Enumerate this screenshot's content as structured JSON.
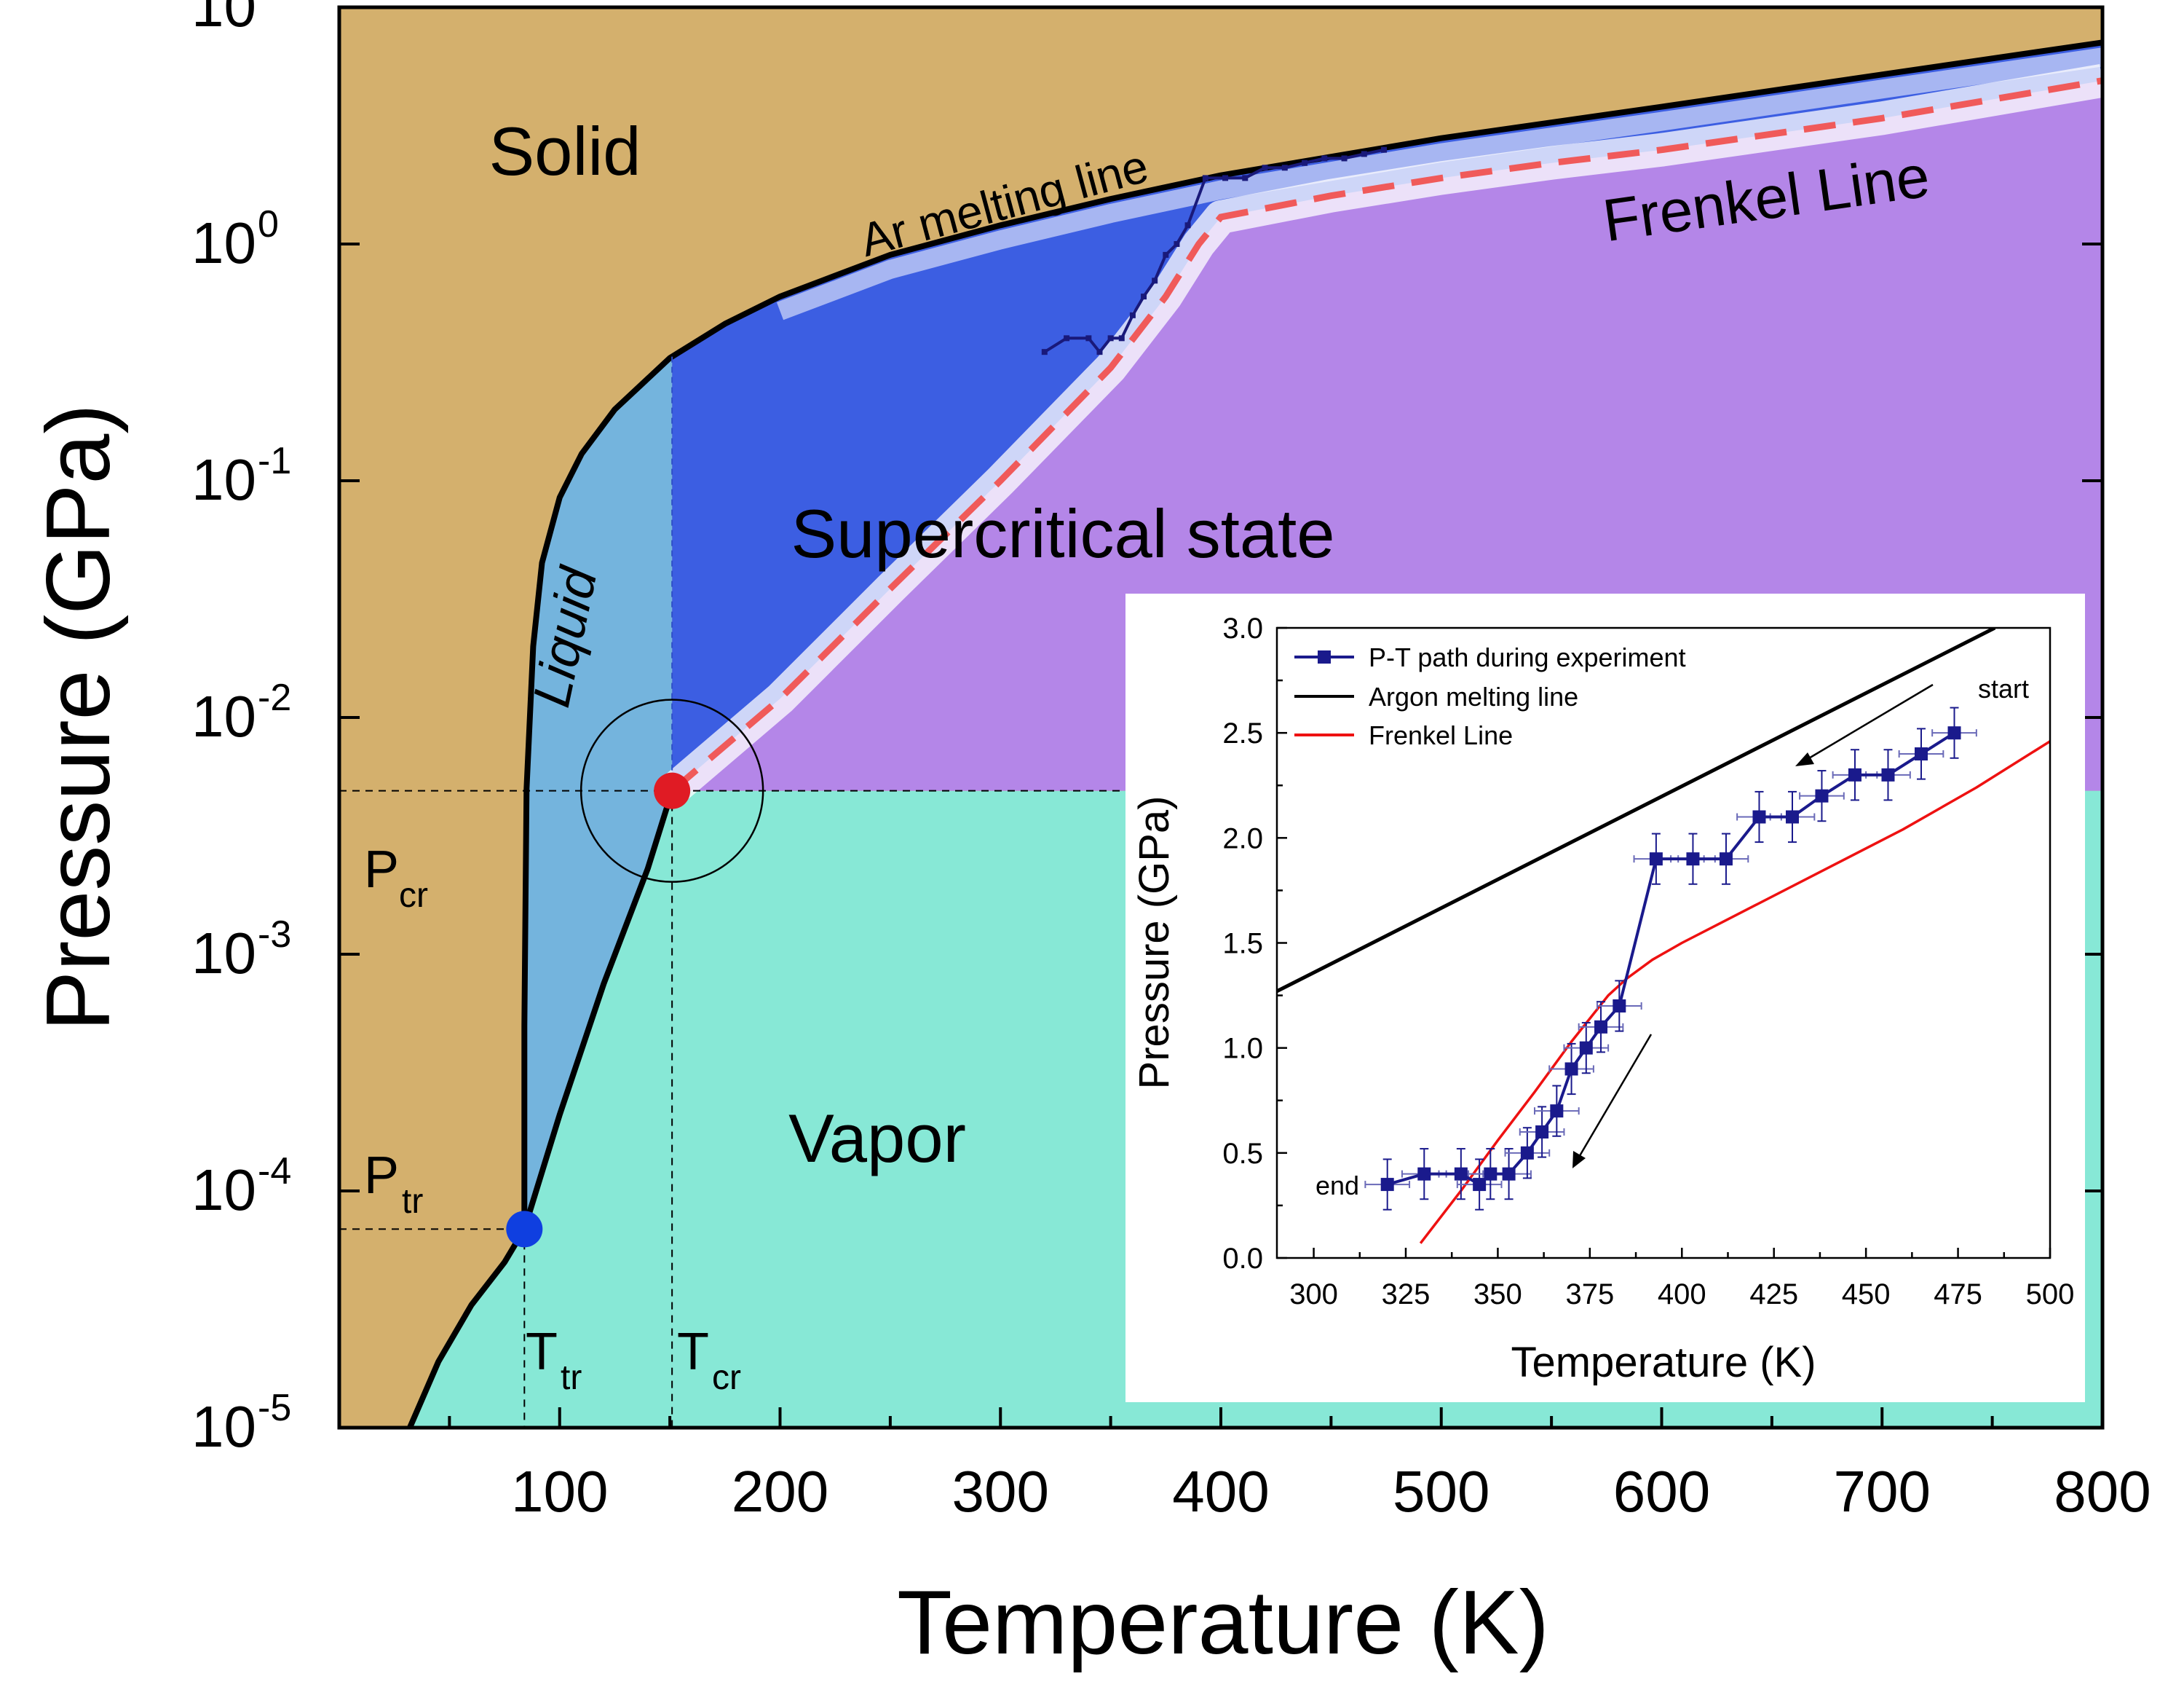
{
  "chart_data": [
    {
      "type": "phase-diagram",
      "title": "",
      "xlabel": "Temperature (K)",
      "ylabel": "Pressure (GPa)",
      "xlim": [
        0,
        800
      ],
      "ylim_log10": [
        -5,
        1
      ],
      "y_scale": "log",
      "x_ticks": [
        "100",
        "200",
        "300",
        "400",
        "500",
        "600",
        "700",
        "800"
      ],
      "x_tick_values": [
        100,
        200,
        300,
        400,
        500,
        600,
        700,
        800
      ],
      "y_ticks": [
        {
          "base": "10",
          "exp": "-5",
          "log": -5
        },
        {
          "base": "10",
          "exp": "-4",
          "log": -4
        },
        {
          "base": "10",
          "exp": "-3",
          "log": -3
        },
        {
          "base": "10",
          "exp": "-2",
          "log": -2
        },
        {
          "base": "10",
          "exp": "-1",
          "log": -1
        },
        {
          "base": "10",
          "exp": "0",
          "log": 0
        },
        {
          "base": "10",
          "exp": "1",
          "log": 1
        }
      ],
      "regions": {
        "solid": "Solid",
        "liquid": "Liquid",
        "supercritical": "Supercritical state",
        "vapor": "Vapor"
      },
      "line_labels": {
        "melting": "Ar melting line",
        "frenkel": "Frenkel Line"
      },
      "points": {
        "triple": {
          "T": 84,
          "P": 6.9e-05,
          "label_P": "P",
          "sub_P": "tr",
          "label_T": "T",
          "sub_T": "tr"
        },
        "critical": {
          "T": 151,
          "P": 0.0049,
          "label_P": "P",
          "sub_P": "cr",
          "label_T": "T",
          "sub_T": "cr"
        }
      },
      "melting_line": {
        "x": [
          32,
          45,
          60,
          75,
          84,
          84,
          85,
          88,
          92,
          100,
          110,
          125,
          150,
          175,
          200,
          250,
          300,
          350,
          400,
          500,
          600,
          700,
          800
        ],
        "y": [
          1e-05,
          1.9e-05,
          3.3e-05,
          5e-05,
          6.9e-05,
          0.0005,
          0.005,
          0.02,
          0.045,
          0.085,
          0.13,
          0.2,
          0.33,
          0.46,
          0.6,
          0.9,
          1.2,
          1.55,
          1.95,
          2.8,
          3.8,
          5.2,
          7.1
        ]
      },
      "vaporization_line": {
        "x": [
          84,
          100,
          120,
          140,
          151
        ],
        "y": [
          6.9e-05,
          0.00021,
          0.00075,
          0.0023,
          0.0049
        ]
      },
      "frenkel_line": {
        "x": [
          151,
          200,
          250,
          300,
          350,
          375,
          390,
          400,
          450,
          500,
          550,
          600,
          700,
          800
        ],
        "y": [
          0.0049,
          0.012,
          0.035,
          0.1,
          0.3,
          0.6,
          1.0,
          1.3,
          1.6,
          1.9,
          2.2,
          2.5,
          3.4,
          4.9
        ]
      },
      "pt_path": {
        "x": [
          320,
          330,
          340,
          345,
          350,
          355,
          360,
          365,
          370,
          375,
          380,
          385,
          393,
          402,
          411,
          420,
          429,
          438,
          447,
          456,
          465,
          474
        ],
        "y": [
          0.35,
          0.4,
          0.4,
          0.35,
          0.4,
          0.4,
          0.5,
          0.6,
          0.7,
          0.9,
          1.0,
          1.2,
          1.9,
          1.9,
          1.9,
          2.1,
          2.1,
          2.2,
          2.3,
          2.3,
          2.4,
          2.5
        ]
      },
      "colors": {
        "solid": "#d4b06d",
        "liquid": "#74b4dd",
        "supercritical": "#3c5ee2",
        "supercritical_purple": "#b486e8",
        "vapor": "#87e8d6",
        "melting_line": "#000000",
        "frenkel_line": "#f05a5a",
        "path": "#19197a",
        "triple_point": "#0f3fe0",
        "critical_point": "#e01b24"
      }
    },
    {
      "type": "line",
      "title": "",
      "xlabel": "Temperature (K)",
      "ylabel": "Pressure (GPa)",
      "xlim": [
        290,
        500
      ],
      "ylim": [
        0,
        3
      ],
      "x_ticks": [
        "300",
        "325",
        "350",
        "375",
        "400",
        "425",
        "450",
        "475",
        "500"
      ],
      "x_tick_values": [
        300,
        325,
        350,
        375,
        400,
        425,
        450,
        475,
        500
      ],
      "y_ticks": [
        "0.0",
        "0.5",
        "1.0",
        "1.5",
        "2.0",
        "2.5",
        "3.0"
      ],
      "y_tick_values": [
        0,
        0.5,
        1,
        1.5,
        2,
        2.5,
        3
      ],
      "legend": [
        {
          "name": "P-T path during experiment",
          "color": "#1a1a8c"
        },
        {
          "name": "Argon melting line",
          "color": "#000000"
        },
        {
          "name": "Frenkel Line",
          "color": "#ee1111"
        }
      ],
      "annotations": {
        "start": "start",
        "end": "end"
      },
      "series": [
        {
          "name": "P-T path during experiment",
          "x": [
            320,
            330,
            340,
            345,
            348,
            353,
            358,
            362,
            366,
            370,
            374,
            378,
            383,
            393,
            403,
            412,
            421,
            430,
            438,
            447,
            456,
            465,
            474
          ],
          "y": [
            0.35,
            0.4,
            0.4,
            0.35,
            0.4,
            0.4,
            0.5,
            0.6,
            0.7,
            0.9,
            1.0,
            1.1,
            1.2,
            1.9,
            1.9,
            1.9,
            2.1,
            2.1,
            2.2,
            2.3,
            2.3,
            2.4,
            2.5
          ],
          "xerr": 6,
          "yerr": 0.12
        },
        {
          "name": "Argon melting line",
          "x": [
            290,
            485
          ],
          "y": [
            1.27,
            3.0
          ]
        },
        {
          "name": "Frenkel Line",
          "x": [
            329,
            340,
            350,
            360,
            370,
            380,
            385,
            392,
            400,
            420,
            440,
            460,
            480,
            500
          ],
          "y": [
            0.07,
            0.32,
            0.56,
            0.79,
            1.03,
            1.25,
            1.33,
            1.42,
            1.5,
            1.68,
            1.86,
            2.04,
            2.24,
            2.46
          ]
        }
      ]
    }
  ]
}
